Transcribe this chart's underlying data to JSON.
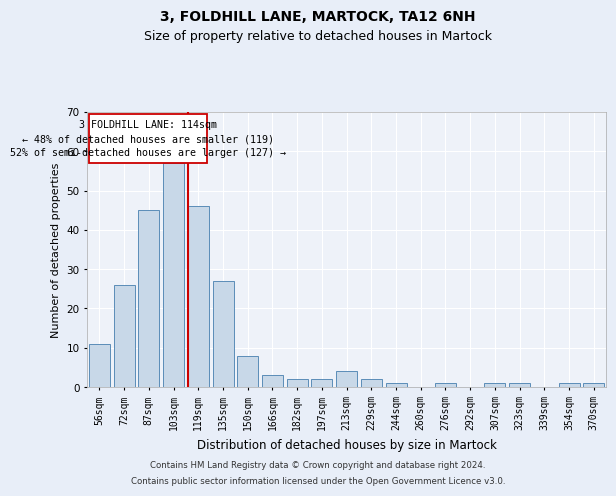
{
  "title1": "3, FOLDHILL LANE, MARTOCK, TA12 6NH",
  "title2": "Size of property relative to detached houses in Martock",
  "xlabel": "Distribution of detached houses by size in Martock",
  "ylabel": "Number of detached properties",
  "categories": [
    "56sqm",
    "72sqm",
    "87sqm",
    "103sqm",
    "119sqm",
    "135sqm",
    "150sqm",
    "166sqm",
    "182sqm",
    "197sqm",
    "213sqm",
    "229sqm",
    "244sqm",
    "260sqm",
    "276sqm",
    "292sqm",
    "307sqm",
    "323sqm",
    "339sqm",
    "354sqm",
    "370sqm"
  ],
  "values": [
    11,
    26,
    45,
    57,
    46,
    27,
    8,
    3,
    2,
    2,
    4,
    2,
    1,
    0,
    1,
    0,
    1,
    1,
    0,
    1,
    1
  ],
  "bar_color": "#c8d8e8",
  "bar_edge_color": "#5b8db8",
  "vline_color": "#cc0000",
  "annotation_text": "3 FOLDHILL LANE: 114sqm\n← 48% of detached houses are smaller (119)\n52% of semi-detached houses are larger (127) →",
  "annotation_box_color": "#ffffff",
  "annotation_box_edge": "#cc0000",
  "ylim": [
    0,
    70
  ],
  "yticks": [
    0,
    10,
    20,
    30,
    40,
    50,
    60,
    70
  ],
  "bg_color": "#e8eef8",
  "plot_bg_color": "#eef2f9",
  "footer1": "Contains HM Land Registry data © Crown copyright and database right 2024.",
  "footer2": "Contains public sector information licensed under the Open Government Licence v3.0.",
  "title1_fontsize": 10,
  "title2_fontsize": 9,
  "tick_fontsize": 7,
  "ylabel_fontsize": 8,
  "xlabel_fontsize": 8.5
}
